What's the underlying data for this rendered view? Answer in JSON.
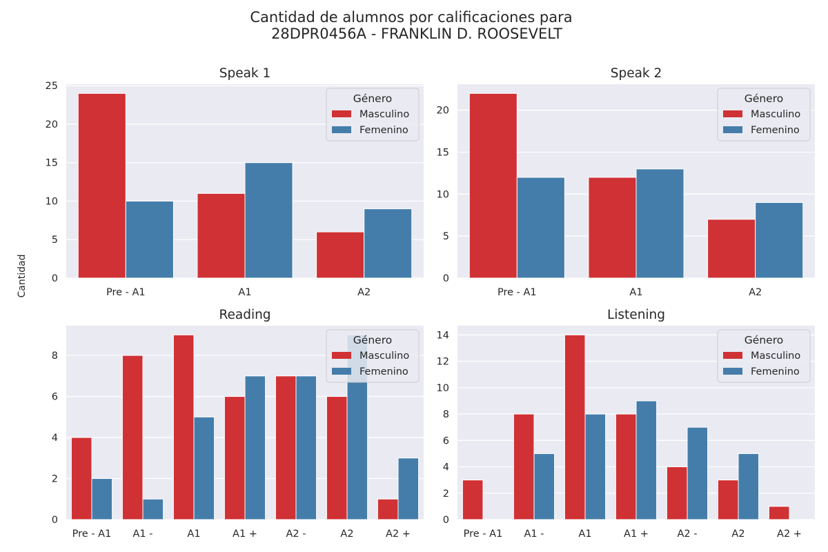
{
  "figure": {
    "title_line1": "Cantidad de alumnos por calificaciones para",
    "title_line2": "28DPR0456A - FRANKLIN D. ROOSEVELT",
    "ylabel": "Cantidad"
  },
  "colors": {
    "masculino": "#d03134",
    "femenino": "#447daa",
    "plot_bg": "#eaeaf2",
    "grid": "#ffffff",
    "text": "#262626"
  },
  "chart_data": [
    {
      "type": "bar",
      "title": "Speak 1",
      "legend_title": "Género",
      "legend_position": "top-right",
      "grid": true,
      "categories": [
        "Pre - A1",
        "A1",
        "A2"
      ],
      "ylim": [
        0,
        25.2
      ],
      "yticks": [
        0,
        5,
        10,
        15,
        20,
        25
      ],
      "series": [
        {
          "name": "Masculino",
          "values": [
            24,
            11,
            6
          ]
        },
        {
          "name": "Femenino",
          "values": [
            10,
            15,
            9
          ]
        }
      ]
    },
    {
      "type": "bar",
      "title": "Speak 2",
      "legend_title": "Género",
      "legend_position": "top-right",
      "grid": true,
      "categories": [
        "Pre - A1",
        "A1",
        "A2"
      ],
      "ylim": [
        0,
        23.1
      ],
      "yticks": [
        0,
        5,
        10,
        15,
        20
      ],
      "series": [
        {
          "name": "Masculino",
          "values": [
            22,
            12,
            7
          ]
        },
        {
          "name": "Femenino",
          "values": [
            12,
            13,
            9
          ]
        }
      ]
    },
    {
      "type": "bar",
      "title": "Reading",
      "legend_title": "Género",
      "legend_position": "top-right",
      "grid": true,
      "categories": [
        "Pre - A1",
        "A1 -",
        "A1",
        "A1 +",
        "A2 -",
        "A2",
        "A2 +"
      ],
      "ylim": [
        0,
        9.45
      ],
      "yticks": [
        0,
        2,
        4,
        6,
        8
      ],
      "series": [
        {
          "name": "Masculino",
          "values": [
            4,
            8,
            9,
            6,
            7,
            6,
            1
          ]
        },
        {
          "name": "Femenino",
          "values": [
            2,
            1,
            5,
            7,
            7,
            9,
            3
          ]
        }
      ]
    },
    {
      "type": "bar",
      "title": "Listening",
      "legend_title": "Género",
      "legend_position": "top-right",
      "grid": true,
      "categories": [
        "Pre - A1",
        "A1 -",
        "A1",
        "A1 +",
        "A2 -",
        "A2",
        "A2 +"
      ],
      "ylim": [
        0,
        14.7
      ],
      "yticks": [
        0,
        2,
        4,
        6,
        8,
        10,
        12,
        14
      ],
      "series": [
        {
          "name": "Masculino",
          "values": [
            3,
            8,
            14,
            8,
            4,
            3,
            1
          ]
        },
        {
          "name": "Femenino",
          "values": [
            0,
            5,
            8,
            9,
            7,
            5,
            0
          ]
        }
      ]
    }
  ]
}
